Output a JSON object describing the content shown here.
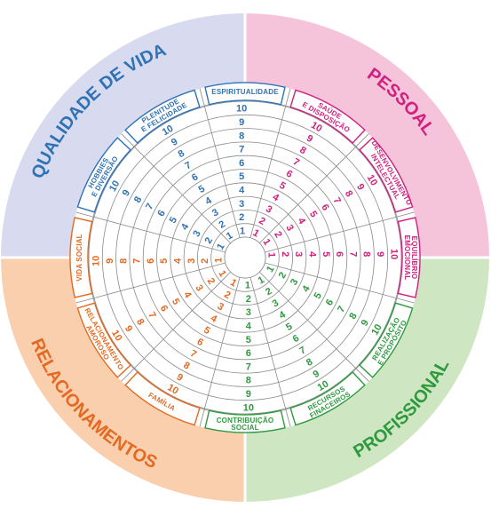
{
  "colors": {
    "background": "#ffffff",
    "grid": "#8a8a8a",
    "qualidade_bg": "#d8dbef",
    "qualidade_ink": "#2f72b5",
    "pessoal_bg": "#f6c4da",
    "pessoal_ink": "#d1207f",
    "profissional_bg": "#cfe6c3",
    "profissional_ink": "#2e9a3e",
    "relacionamentos_bg": "#f9cfae",
    "relacionamentos_ink": "#e46a23"
  },
  "sectors": [
    {
      "id": "qualidade",
      "title": "QUALIDADE DE VIDA",
      "color_key": "qualidade"
    },
    {
      "id": "pessoal",
      "title": "PESSOAL",
      "color_key": "pessoal"
    },
    {
      "id": "profissional",
      "title": "PROFISSIONAL",
      "color_key": "profissional"
    },
    {
      "id": "relacionamentos",
      "title": "RELACIONAMENTOS",
      "color_key": "relacionamentos"
    }
  ],
  "areas": [
    {
      "lines": [
        "ESPIRITUALIDADE"
      ],
      "sector": "qualidade"
    },
    {
      "lines": [
        "SAÚDE",
        "E DISPOSIÇÃO"
      ],
      "sector": "pessoal"
    },
    {
      "lines": [
        "DESENVOLVIMENTO",
        "INTELECTUAL"
      ],
      "sector": "pessoal"
    },
    {
      "lines": [
        "EQUILÍBRIO",
        "EMOCIONAL"
      ],
      "sector": "pessoal"
    },
    {
      "lines": [
        "REALIZAÇÃO",
        "E PROPÓSITO"
      ],
      "sector": "profissional"
    },
    {
      "lines": [
        "RECURSOS",
        "FINACEIROS"
      ],
      "sector": "profissional"
    },
    {
      "lines": [
        "CONTRIBUIÇÃO",
        "SOCIAL"
      ],
      "sector": "profissional"
    },
    {
      "lines": [
        "FAMÍLIA"
      ],
      "sector": "relacionamentos"
    },
    {
      "lines": [
        "RELACIONAMENTO",
        "AMOROSO"
      ],
      "sector": "relacionamentos"
    },
    {
      "lines": [
        "VIDA SOCIAL"
      ],
      "sector": "relacionamentos"
    },
    {
      "lines": [
        "HOBBIES",
        "E DIVERSÃO"
      ],
      "sector": "qualidade"
    },
    {
      "lines": [
        "PLENITUDE",
        "E FELICIDADE"
      ],
      "sector": "qualidade"
    }
  ],
  "scale": [
    "1",
    "2",
    "3",
    "4",
    "5",
    "6",
    "7",
    "8",
    "9",
    "10"
  ]
}
